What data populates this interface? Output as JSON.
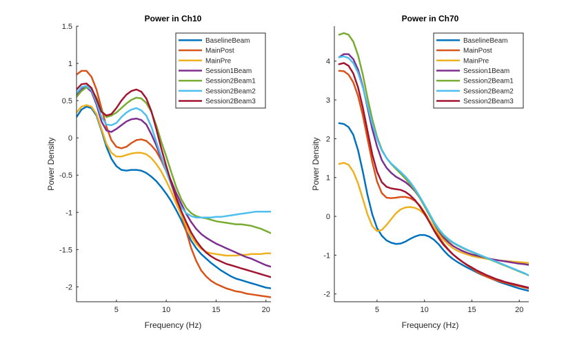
{
  "chart_data": [
    {
      "type": "line",
      "title": "Power in Ch10",
      "xlabel": "Frequency (Hz)",
      "ylabel": "Power Density",
      "xlim": [
        1,
        20.5
      ],
      "ylim": [
        -2.2,
        1.5
      ],
      "xticks": [
        5,
        10,
        15,
        20
      ],
      "yticks": [
        -2,
        -1.5,
        -1,
        -0.5,
        0,
        0.5,
        1,
        1.5
      ],
      "ytick_labels": [
        "-2",
        "-1.5",
        "-1",
        "-0.5",
        "0",
        "0.5",
        "1",
        "1.5"
      ],
      "legend_position": "top-right",
      "x": [
        1,
        1.5,
        2,
        2.5,
        3,
        3.5,
        4,
        4.5,
        5,
        5.5,
        6,
        6.5,
        7,
        7.5,
        8,
        8.5,
        9,
        9.5,
        10,
        10.5,
        11,
        11.5,
        12,
        12.5,
        13,
        13.5,
        14,
        14.5,
        15,
        15.5,
        16,
        16.5,
        17,
        17.5,
        18,
        18.5,
        19,
        19.5,
        20,
        20.5
      ],
      "series": [
        {
          "name": "BaselineBeam",
          "color": "#0072BD",
          "values": [
            0.28,
            0.38,
            0.42,
            0.4,
            0.3,
            0.1,
            -0.12,
            -0.28,
            -0.38,
            -0.43,
            -0.44,
            -0.43,
            -0.43,
            -0.44,
            -0.47,
            -0.52,
            -0.58,
            -0.66,
            -0.75,
            -0.85,
            -0.97,
            -1.1,
            -1.25,
            -1.38,
            -1.48,
            -1.56,
            -1.62,
            -1.68,
            -1.73,
            -1.78,
            -1.82,
            -1.86,
            -1.89,
            -1.91,
            -1.93,
            -1.95,
            -1.97,
            -1.99,
            -2.01,
            -2.02
          ]
        },
        {
          "name": "MainPost",
          "color": "#D95319",
          "values": [
            0.85,
            0.9,
            0.9,
            0.82,
            0.65,
            0.4,
            0.15,
            -0.03,
            -0.12,
            -0.14,
            -0.12,
            -0.07,
            -0.03,
            -0.02,
            -0.04,
            -0.1,
            -0.18,
            -0.3,
            -0.45,
            -0.62,
            -0.82,
            -1.02,
            -1.25,
            -1.48,
            -1.65,
            -1.78,
            -1.86,
            -1.92,
            -1.96,
            -1.99,
            -2.02,
            -2.04,
            -2.06,
            -2.07,
            -2.09,
            -2.1,
            -2.11,
            -2.12,
            -2.13,
            -2.14
          ]
        },
        {
          "name": "MainPre",
          "color": "#EDB120",
          "values": [
            0.34,
            0.42,
            0.44,
            0.42,
            0.32,
            0.12,
            -0.08,
            -0.2,
            -0.25,
            -0.25,
            -0.23,
            -0.21,
            -0.2,
            -0.2,
            -0.22,
            -0.27,
            -0.35,
            -0.45,
            -0.58,
            -0.72,
            -0.88,
            -1.03,
            -1.18,
            -1.32,
            -1.42,
            -1.49,
            -1.53,
            -1.55,
            -1.56,
            -1.57,
            -1.58,
            -1.58,
            -1.58,
            -1.57,
            -1.57,
            -1.56,
            -1.56,
            -1.56,
            -1.55,
            -1.55
          ]
        },
        {
          "name": "Session1Beam",
          "color": "#7E2F8E",
          "values": [
            0.57,
            0.66,
            0.68,
            0.62,
            0.45,
            0.22,
            0.1,
            0.08,
            0.12,
            0.17,
            0.22,
            0.25,
            0.26,
            0.24,
            0.18,
            0.05,
            -0.1,
            -0.27,
            -0.43,
            -0.58,
            -0.74,
            -0.88,
            -1.02,
            -1.13,
            -1.22,
            -1.29,
            -1.34,
            -1.38,
            -1.42,
            -1.45,
            -1.48,
            -1.51,
            -1.54,
            -1.57,
            -1.6,
            -1.62,
            -1.65,
            -1.68,
            -1.71,
            -1.73
          ]
        },
        {
          "name": "Session2Beam1",
          "color": "#77AC30",
          "values": [
            0.55,
            0.63,
            0.68,
            0.65,
            0.54,
            0.37,
            0.28,
            0.3,
            0.34,
            0.4,
            0.46,
            0.51,
            0.54,
            0.53,
            0.47,
            0.35,
            0.17,
            -0.05,
            -0.25,
            -0.46,
            -0.66,
            -0.82,
            -0.94,
            -1.01,
            -1.05,
            -1.07,
            -1.08,
            -1.1,
            -1.12,
            -1.13,
            -1.14,
            -1.15,
            -1.16,
            -1.16,
            -1.17,
            -1.18,
            -1.2,
            -1.22,
            -1.25,
            -1.28
          ]
        },
        {
          "name": "Session2Beam2",
          "color": "#4DBEEE",
          "values": [
            0.6,
            0.68,
            0.7,
            0.64,
            0.48,
            0.28,
            0.18,
            0.17,
            0.2,
            0.28,
            0.34,
            0.38,
            0.4,
            0.37,
            0.3,
            0.15,
            -0.05,
            -0.25,
            -0.45,
            -0.63,
            -0.8,
            -0.93,
            -1.01,
            -1.05,
            -1.07,
            -1.07,
            -1.07,
            -1.07,
            -1.06,
            -1.06,
            -1.05,
            -1.04,
            -1.03,
            -1.02,
            -1.01,
            -1.0,
            -0.99,
            -0.99,
            -0.99,
            -0.99
          ]
        },
        {
          "name": "Session2Beam3",
          "color": "#A2142F",
          "values": [
            0.65,
            0.72,
            0.73,
            0.67,
            0.52,
            0.35,
            0.3,
            0.32,
            0.4,
            0.5,
            0.58,
            0.63,
            0.65,
            0.62,
            0.53,
            0.36,
            0.12,
            -0.14,
            -0.38,
            -0.6,
            -0.8,
            -0.98,
            -1.13,
            -1.27,
            -1.38,
            -1.47,
            -1.54,
            -1.59,
            -1.63,
            -1.66,
            -1.69,
            -1.71,
            -1.73,
            -1.75,
            -1.77,
            -1.79,
            -1.81,
            -1.83,
            -1.85,
            -1.87
          ]
        }
      ]
    },
    {
      "type": "line",
      "title": "Power in Ch70",
      "xlabel": "Frequency (Hz)",
      "ylabel": "Power Density",
      "xlim": [
        0.5,
        21
      ],
      "ylim": [
        -2.2,
        4.9
      ],
      "xticks": [
        5,
        10,
        15,
        20
      ],
      "yticks": [
        -2,
        -1,
        0,
        1,
        2,
        3,
        4
      ],
      "ytick_labels": [
        "-2",
        "-1",
        "0",
        "1",
        "2",
        "3",
        "4"
      ],
      "legend_position": "top-right",
      "x": [
        1,
        1.5,
        2,
        2.5,
        3,
        3.5,
        4,
        4.5,
        5,
        5.5,
        6,
        6.5,
        7,
        7.5,
        8,
        8.5,
        9,
        9.5,
        10,
        10.5,
        11,
        11.5,
        12,
        12.5,
        13,
        13.5,
        14,
        14.5,
        15,
        15.5,
        16,
        16.5,
        17,
        17.5,
        18,
        18.5,
        19,
        19.5,
        20,
        20.5,
        21
      ],
      "series": [
        {
          "name": "BaselineBeam",
          "color": "#0072BD",
          "values": [
            2.4,
            2.38,
            2.3,
            2.1,
            1.7,
            1.15,
            0.55,
            0.05,
            -0.3,
            -0.5,
            -0.62,
            -0.68,
            -0.71,
            -0.7,
            -0.65,
            -0.58,
            -0.52,
            -0.48,
            -0.48,
            -0.52,
            -0.6,
            -0.72,
            -0.87,
            -1.0,
            -1.1,
            -1.18,
            -1.25,
            -1.32,
            -1.38,
            -1.44,
            -1.5,
            -1.55,
            -1.6,
            -1.65,
            -1.7,
            -1.74,
            -1.78,
            -1.82,
            -1.86,
            -1.89,
            -1.92
          ]
        },
        {
          "name": "MainPost",
          "color": "#D95319",
          "values": [
            3.75,
            3.74,
            3.65,
            3.45,
            3.1,
            2.6,
            2.0,
            1.4,
            0.9,
            0.6,
            0.48,
            0.47,
            0.48,
            0.5,
            0.5,
            0.47,
            0.4,
            0.28,
            0.1,
            -0.1,
            -0.32,
            -0.52,
            -0.7,
            -0.85,
            -0.98,
            -1.08,
            -1.17,
            -1.26,
            -1.34,
            -1.42,
            -1.49,
            -1.55,
            -1.6,
            -1.64,
            -1.68,
            -1.71,
            -1.74,
            -1.77,
            -1.8,
            -1.83,
            -1.86
          ]
        },
        {
          "name": "MainPre",
          "color": "#EDB120",
          "values": [
            1.35,
            1.38,
            1.33,
            1.15,
            0.85,
            0.45,
            0.05,
            -0.25,
            -0.38,
            -0.35,
            -0.22,
            -0.07,
            0.08,
            0.18,
            0.23,
            0.24,
            0.22,
            0.16,
            0.05,
            -0.1,
            -0.28,
            -0.45,
            -0.6,
            -0.72,
            -0.82,
            -0.89,
            -0.94,
            -0.98,
            -1.02,
            -1.05,
            -1.07,
            -1.09,
            -1.11,
            -1.12,
            -1.14,
            -1.15,
            -1.16,
            -1.17,
            -1.18,
            -1.19,
            -1.2
          ]
        },
        {
          "name": "Session1Beam",
          "color": "#7E2F8E",
          "values": [
            4.1,
            4.18,
            4.18,
            4.05,
            3.78,
            3.35,
            2.8,
            2.25,
            1.8,
            1.45,
            1.25,
            1.12,
            1.02,
            0.95,
            0.88,
            0.78,
            0.65,
            0.48,
            0.28,
            0.05,
            -0.18,
            -0.38,
            -0.54,
            -0.66,
            -0.76,
            -0.83,
            -0.89,
            -0.94,
            -0.98,
            -1.01,
            -1.04,
            -1.07,
            -1.1,
            -1.12,
            -1.14,
            -1.16,
            -1.18,
            -1.2,
            -1.22,
            -1.23,
            -1.25
          ]
        },
        {
          "name": "Session2Beam1",
          "color": "#77AC30",
          "values": [
            4.68,
            4.72,
            4.68,
            4.5,
            4.15,
            3.65,
            3.05,
            2.5,
            2.05,
            1.72,
            1.5,
            1.35,
            1.22,
            1.1,
            0.97,
            0.83,
            0.67,
            0.48,
            0.26,
            0.04,
            -0.17,
            -0.35,
            -0.49,
            -0.6,
            -0.68,
            -0.75,
            -0.81,
            -0.87,
            -0.92,
            -0.97,
            -1.02,
            -1.07,
            -1.12,
            -1.17,
            -1.22,
            -1.27,
            -1.32,
            -1.37,
            -1.42,
            -1.47,
            -1.52
          ]
        },
        {
          "name": "Session2Beam2",
          "color": "#4DBEEE",
          "values": [
            4.1,
            4.12,
            4.08,
            3.95,
            3.7,
            3.32,
            2.85,
            2.38,
            2.0,
            1.7,
            1.5,
            1.36,
            1.25,
            1.14,
            1.02,
            0.88,
            0.71,
            0.51,
            0.3,
            0.08,
            -0.14,
            -0.32,
            -0.47,
            -0.58,
            -0.67,
            -0.74,
            -0.8,
            -0.86,
            -0.91,
            -0.96,
            -1.01,
            -1.06,
            -1.11,
            -1.16,
            -1.21,
            -1.26,
            -1.31,
            -1.36,
            -1.41,
            -1.46,
            -1.52
          ]
        },
        {
          "name": "Session2Beam3",
          "color": "#A2142F",
          "values": [
            3.92,
            3.95,
            3.88,
            3.68,
            3.32,
            2.8,
            2.2,
            1.6,
            1.15,
            0.88,
            0.76,
            0.72,
            0.7,
            0.68,
            0.63,
            0.54,
            0.42,
            0.26,
            0.07,
            -0.14,
            -0.36,
            -0.56,
            -0.73,
            -0.86,
            -0.98,
            -1.08,
            -1.17,
            -1.25,
            -1.32,
            -1.39,
            -1.45,
            -1.51,
            -1.56,
            -1.61,
            -1.65,
            -1.69,
            -1.72,
            -1.75,
            -1.78,
            -1.81,
            -1.84
          ]
        }
      ]
    }
  ]
}
